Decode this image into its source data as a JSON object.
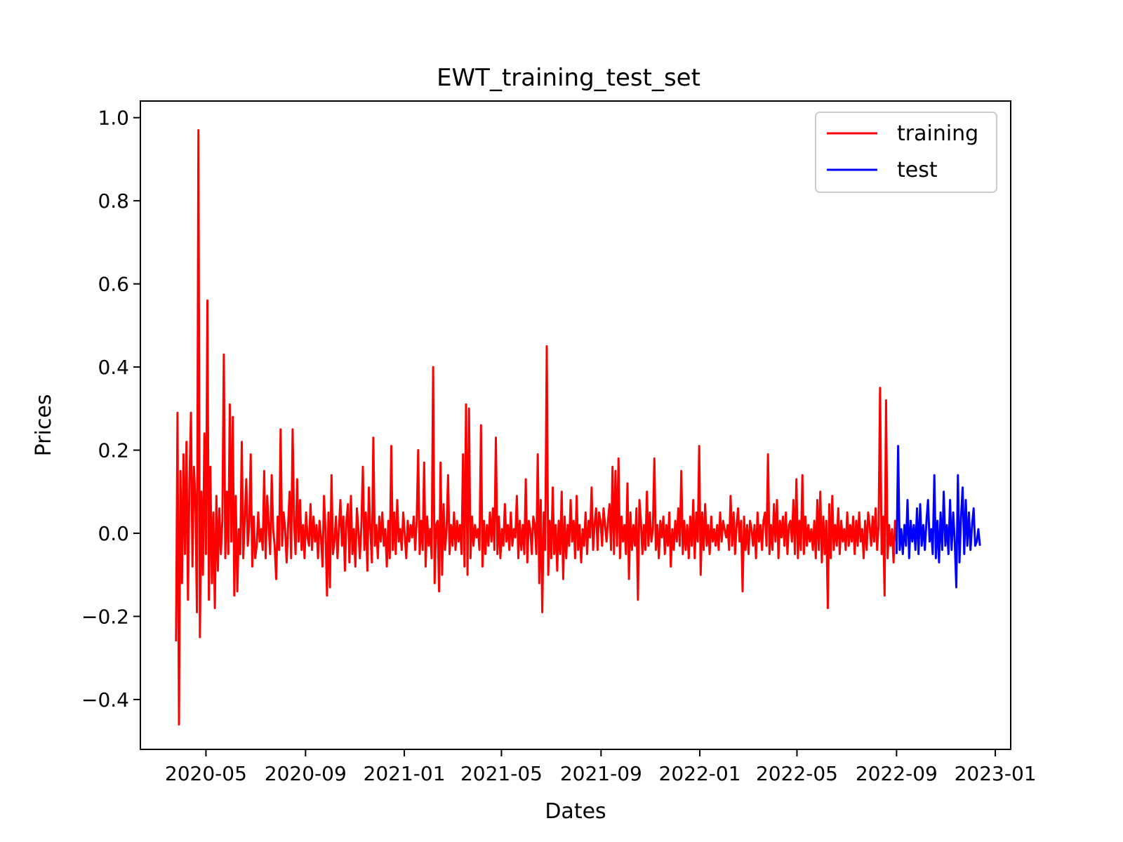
{
  "chart_data": {
    "type": "line",
    "title": "EWT_training_test_set",
    "xlabel": "Dates",
    "ylabel": "Prices",
    "xlim": [
      "2020-02-10",
      "2023-01-20"
    ],
    "ylim": [
      -0.52,
      1.04
    ],
    "x_ticks": [
      "2020-05",
      "2020-09",
      "2021-01",
      "2021-05",
      "2021-09",
      "2022-01",
      "2022-05",
      "2022-09",
      "2023-01"
    ],
    "y_ticks": [
      "−0.4",
      "−0.2",
      "0.0",
      "0.2",
      "0.4",
      "0.6",
      "0.8",
      "1.0"
    ],
    "y_tick_values": [
      -0.4,
      -0.2,
      0.0,
      0.2,
      0.4,
      0.6,
      0.8,
      1.0
    ],
    "grid": false,
    "legend": "top-right",
    "series": [
      {
        "name": "training",
        "color": "#ff0000",
        "start": "2020-03-25",
        "end": "2022-09-01",
        "values": [
          -0.26,
          0.29,
          -0.46,
          0.15,
          -0.12,
          0.19,
          -0.05,
          0.22,
          -0.16,
          0.12,
          0.29,
          -0.08,
          0.16,
          0.08,
          -0.19,
          0.97,
          -0.25,
          0.1,
          -0.1,
          0.24,
          -0.05,
          0.56,
          -0.16,
          0.16,
          -0.12,
          0.05,
          -0.18,
          0.09,
          -0.09,
          0.06,
          -0.05,
          0.03,
          0.43,
          -0.06,
          0.1,
          -0.05,
          0.31,
          -0.02,
          0.28,
          -0.15,
          0.09,
          -0.14,
          0.01,
          -0.05,
          0.22,
          -0.06,
          0.03,
          0.13,
          -0.03,
          0.02,
          0.19,
          -0.08,
          0.04,
          -0.06,
          -0.03,
          0.05,
          -0.02,
          0.01,
          -0.04,
          0.15,
          -0.06,
          0.09,
          0.02,
          -0.05,
          0.14,
          0.01,
          -0.03,
          -0.11,
          0.04,
          -0.04,
          0.25,
          -0.03,
          0.05,
          0.01,
          -0.07,
          0.02,
          0.1,
          -0.06,
          0.25,
          0.03,
          -0.05,
          0.13,
          -0.02,
          0.08,
          -0.04,
          0.02,
          -0.06,
          0.05,
          -0.01,
          -0.03,
          0.07,
          -0.04,
          0.04,
          -0.02,
          0.02,
          -0.06,
          0.03,
          -0.01,
          -0.08,
          0.09,
          0.01,
          -0.15,
          0.05,
          -0.13,
          0.14,
          -0.05,
          -0.02,
          0.04,
          -0.06,
          0.01,
          0.08,
          -0.03,
          0.04,
          -0.09,
          0.03,
          0.07,
          -0.07,
          0.09,
          -0.05,
          0.01,
          -0.08,
          0.06,
          0.01,
          -0.06,
          0.02,
          0.16,
          -0.04,
          0.05,
          -0.09,
          0.11,
          0.01,
          -0.07,
          0.23,
          -0.03,
          0.02,
          -0.06,
          0.04,
          -0.02,
          0.05,
          -0.03,
          0.01,
          -0.08,
          0.03,
          -0.06,
          0.21,
          -0.04,
          0.05,
          -0.05,
          0.08,
          -0.02,
          0.01,
          -0.04,
          0.05,
          0.0,
          -0.06,
          0.03,
          -0.02,
          0.02,
          -0.01,
          0.04,
          -0.04,
          0.03,
          0.2,
          -0.05,
          0.03,
          -0.04,
          0.17,
          -0.08,
          0.04,
          -0.03,
          0.01,
          -0.06,
          0.4,
          -0.12,
          0.02,
          0.03,
          -0.14,
          0.17,
          -0.1,
          0.07,
          -0.04,
          0.01,
          0.14,
          -0.05,
          0.02,
          -0.03,
          0.05,
          -0.04,
          0.03,
          -0.02,
          0.02,
          -0.05,
          0.19,
          -0.08,
          0.31,
          -0.1,
          0.3,
          -0.06,
          0.04,
          -0.03,
          0.02,
          -0.01,
          0.01,
          -0.04,
          0.26,
          -0.08,
          0.03,
          -0.05,
          0.02,
          -0.03,
          0.05,
          -0.02,
          0.06,
          -0.04,
          0.23,
          -0.05,
          0.04,
          -0.06,
          0.01,
          -0.03,
          0.07,
          -0.02,
          0.02,
          -0.04,
          0.05,
          -0.03,
          0.01,
          -0.01,
          0.09,
          -0.06,
          0.03,
          -0.04,
          0.02,
          -0.05,
          0.13,
          -0.07,
          0.03,
          0.01,
          -0.05,
          0.04,
          0.02,
          -0.05,
          0.19,
          -0.12,
          0.08,
          -0.19,
          0.05,
          -0.04,
          0.45,
          -0.1,
          0.03,
          -0.06,
          0.11,
          -0.05,
          0.02,
          -0.09,
          0.03,
          -0.05,
          0.1,
          -0.11,
          0.04,
          -0.06,
          0.02,
          -0.03,
          0.08,
          -0.02,
          0.03,
          -0.06,
          0.09,
          -0.04,
          0.02,
          -0.07,
          0.01,
          -0.03,
          0.05,
          -0.05,
          0.03,
          -0.01,
          0.11,
          -0.04,
          0.02,
          0.06,
          -0.04,
          0.05,
          0.03,
          -0.03,
          0.06,
          0.02,
          -0.02,
          0.03,
          0.07,
          -0.04,
          0.16,
          -0.05,
          0.15,
          -0.03,
          0.18,
          -0.06,
          0.04,
          -0.02,
          0.02,
          -0.05,
          0.12,
          -0.11,
          0.05,
          -0.04,
          0.02,
          -0.03,
          0.06,
          -0.16,
          0.08,
          0.03,
          -0.05,
          0.02,
          -0.04,
          0.1,
          -0.03,
          0.05,
          -0.02,
          0.01,
          0.18,
          -0.04,
          0.02,
          -0.06,
          0.03,
          -0.01,
          0.04,
          -0.05,
          0.02,
          -0.03,
          0.05,
          -0.08,
          0.01,
          -0.04,
          0.03,
          -0.02,
          0.06,
          -0.03,
          0.15,
          -0.05,
          0.03,
          -0.04,
          0.02,
          -0.06,
          0.04,
          -0.03,
          0.08,
          -0.06,
          0.05,
          -0.02,
          0.21,
          -0.1,
          0.05,
          -0.04,
          0.07,
          -0.03,
          0.02,
          -0.05,
          0.04,
          -0.02,
          0.01,
          -0.03,
          0.02,
          -0.04,
          0.05,
          -0.02,
          0.03,
          0.01,
          -0.01,
          0.02,
          -0.04,
          0.09,
          -0.03,
          0.05,
          -0.05,
          0.02,
          0.06,
          -0.02,
          0.03,
          -0.14,
          0.04,
          -0.04,
          0.02,
          -0.05,
          0.03,
          0.01,
          -0.03,
          0.02,
          -0.06,
          0.05,
          -0.02,
          0.02,
          -0.04,
          0.03,
          0.05,
          -0.03,
          0.19,
          -0.05,
          0.02,
          -0.04,
          0.07,
          -0.02,
          0.08,
          -0.06,
          0.03,
          -0.01,
          0.04,
          -0.03,
          0.05,
          -0.05,
          0.02,
          0.03,
          -0.02,
          0.08,
          -0.05,
          0.13,
          -0.06,
          0.03,
          -0.04,
          0.14,
          -0.05,
          0.04,
          -0.03,
          0.02,
          -0.02,
          0.01,
          -0.04,
          0.03,
          -0.06,
          0.08,
          -0.04,
          0.1,
          -0.07,
          0.04,
          -0.05,
          0.03,
          -0.18,
          0.07,
          -0.06,
          0.09,
          -0.04,
          0.02,
          -0.03,
          0.06,
          -0.05,
          0.03,
          -0.02,
          0.01,
          -0.04,
          0.05,
          -0.03,
          0.02,
          -0.02,
          0.04,
          -0.05,
          0.03,
          -0.03,
          0.05,
          -0.02,
          0.01,
          -0.06,
          0.03,
          -0.04,
          0.05,
          0.02,
          -0.03,
          0.04,
          -0.02,
          0.06,
          -0.04,
          0.02,
          0.35,
          -0.05,
          0.04,
          -0.15,
          0.32,
          -0.06,
          0.02,
          -0.03,
          0.01,
          -0.07,
          0.03,
          -0.02
        ]
      },
      {
        "name": "test",
        "color": "#0000ff",
        "start": "2022-09-01",
        "end": "2022-12-13",
        "values": [
          -0.05,
          0.21,
          -0.04,
          0.01,
          -0.05,
          0.02,
          -0.03,
          0.08,
          -0.06,
          0.03,
          -0.02,
          0.02,
          -0.04,
          0.06,
          -0.05,
          0.07,
          -0.03,
          0.02,
          -0.04,
          0.03,
          0.08,
          -0.02,
          0.01,
          -0.05,
          0.14,
          -0.06,
          0.03,
          -0.07,
          0.05,
          -0.04,
          0.1,
          -0.03,
          0.02,
          -0.05,
          0.08,
          -0.04,
          0.05,
          -0.02,
          -0.13,
          0.14,
          -0.07,
          0.04,
          0.11,
          -0.05,
          0.08,
          -0.03,
          0.05,
          -0.04,
          0.02,
          0.06,
          -0.03,
          -0.02,
          0.01,
          -0.03
        ]
      }
    ]
  }
}
